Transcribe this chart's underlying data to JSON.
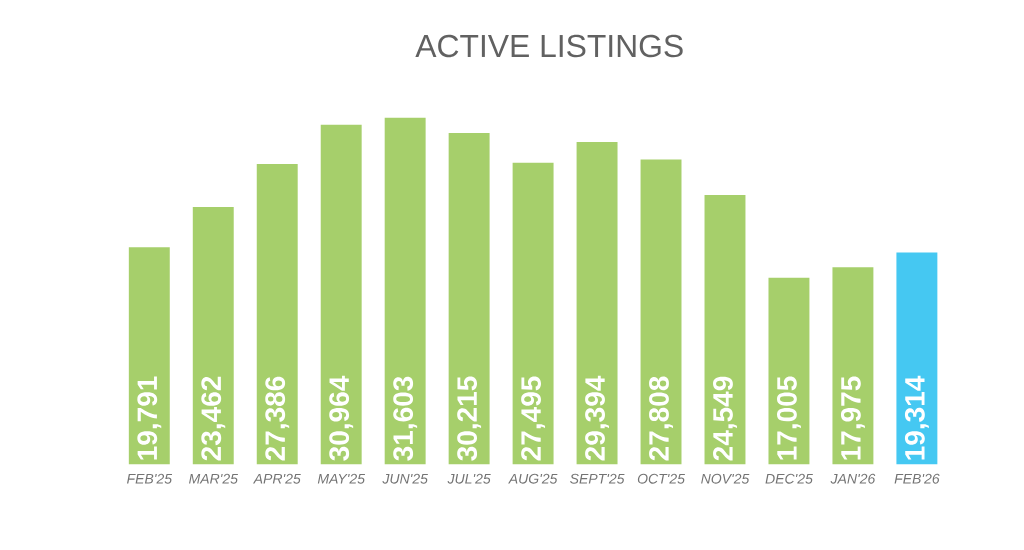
{
  "chart_data": {
    "type": "bar",
    "title": "ACTIVE LISTINGS",
    "categories": [
      "FEB'25",
      "MAR'25",
      "APR'25",
      "MAY'25",
      "JUN'25",
      "JUL'25",
      "AUG'25",
      "SEPT'25",
      "OCT'25",
      "NOV'25",
      "DEC'25",
      "JAN'26",
      "FEB'26"
    ],
    "values": [
      19791,
      23462,
      27386,
      30964,
      31603,
      30215,
      27495,
      29394,
      27808,
      24549,
      17005,
      17975,
      19314
    ],
    "value_labels": [
      "19,791",
      "23,462",
      "27,386",
      "30,964",
      "31,603",
      "30,215",
      "27,495",
      "29,394",
      "27,808",
      "24,549",
      "17,005",
      "17,975",
      "19,314"
    ],
    "colors": [
      "#a6cf6b",
      "#a6cf6b",
      "#a6cf6b",
      "#a6cf6b",
      "#a6cf6b",
      "#a6cf6b",
      "#a6cf6b",
      "#a6cf6b",
      "#a6cf6b",
      "#a6cf6b",
      "#a6cf6b",
      "#a6cf6b",
      "#45c8f2"
    ]
  }
}
